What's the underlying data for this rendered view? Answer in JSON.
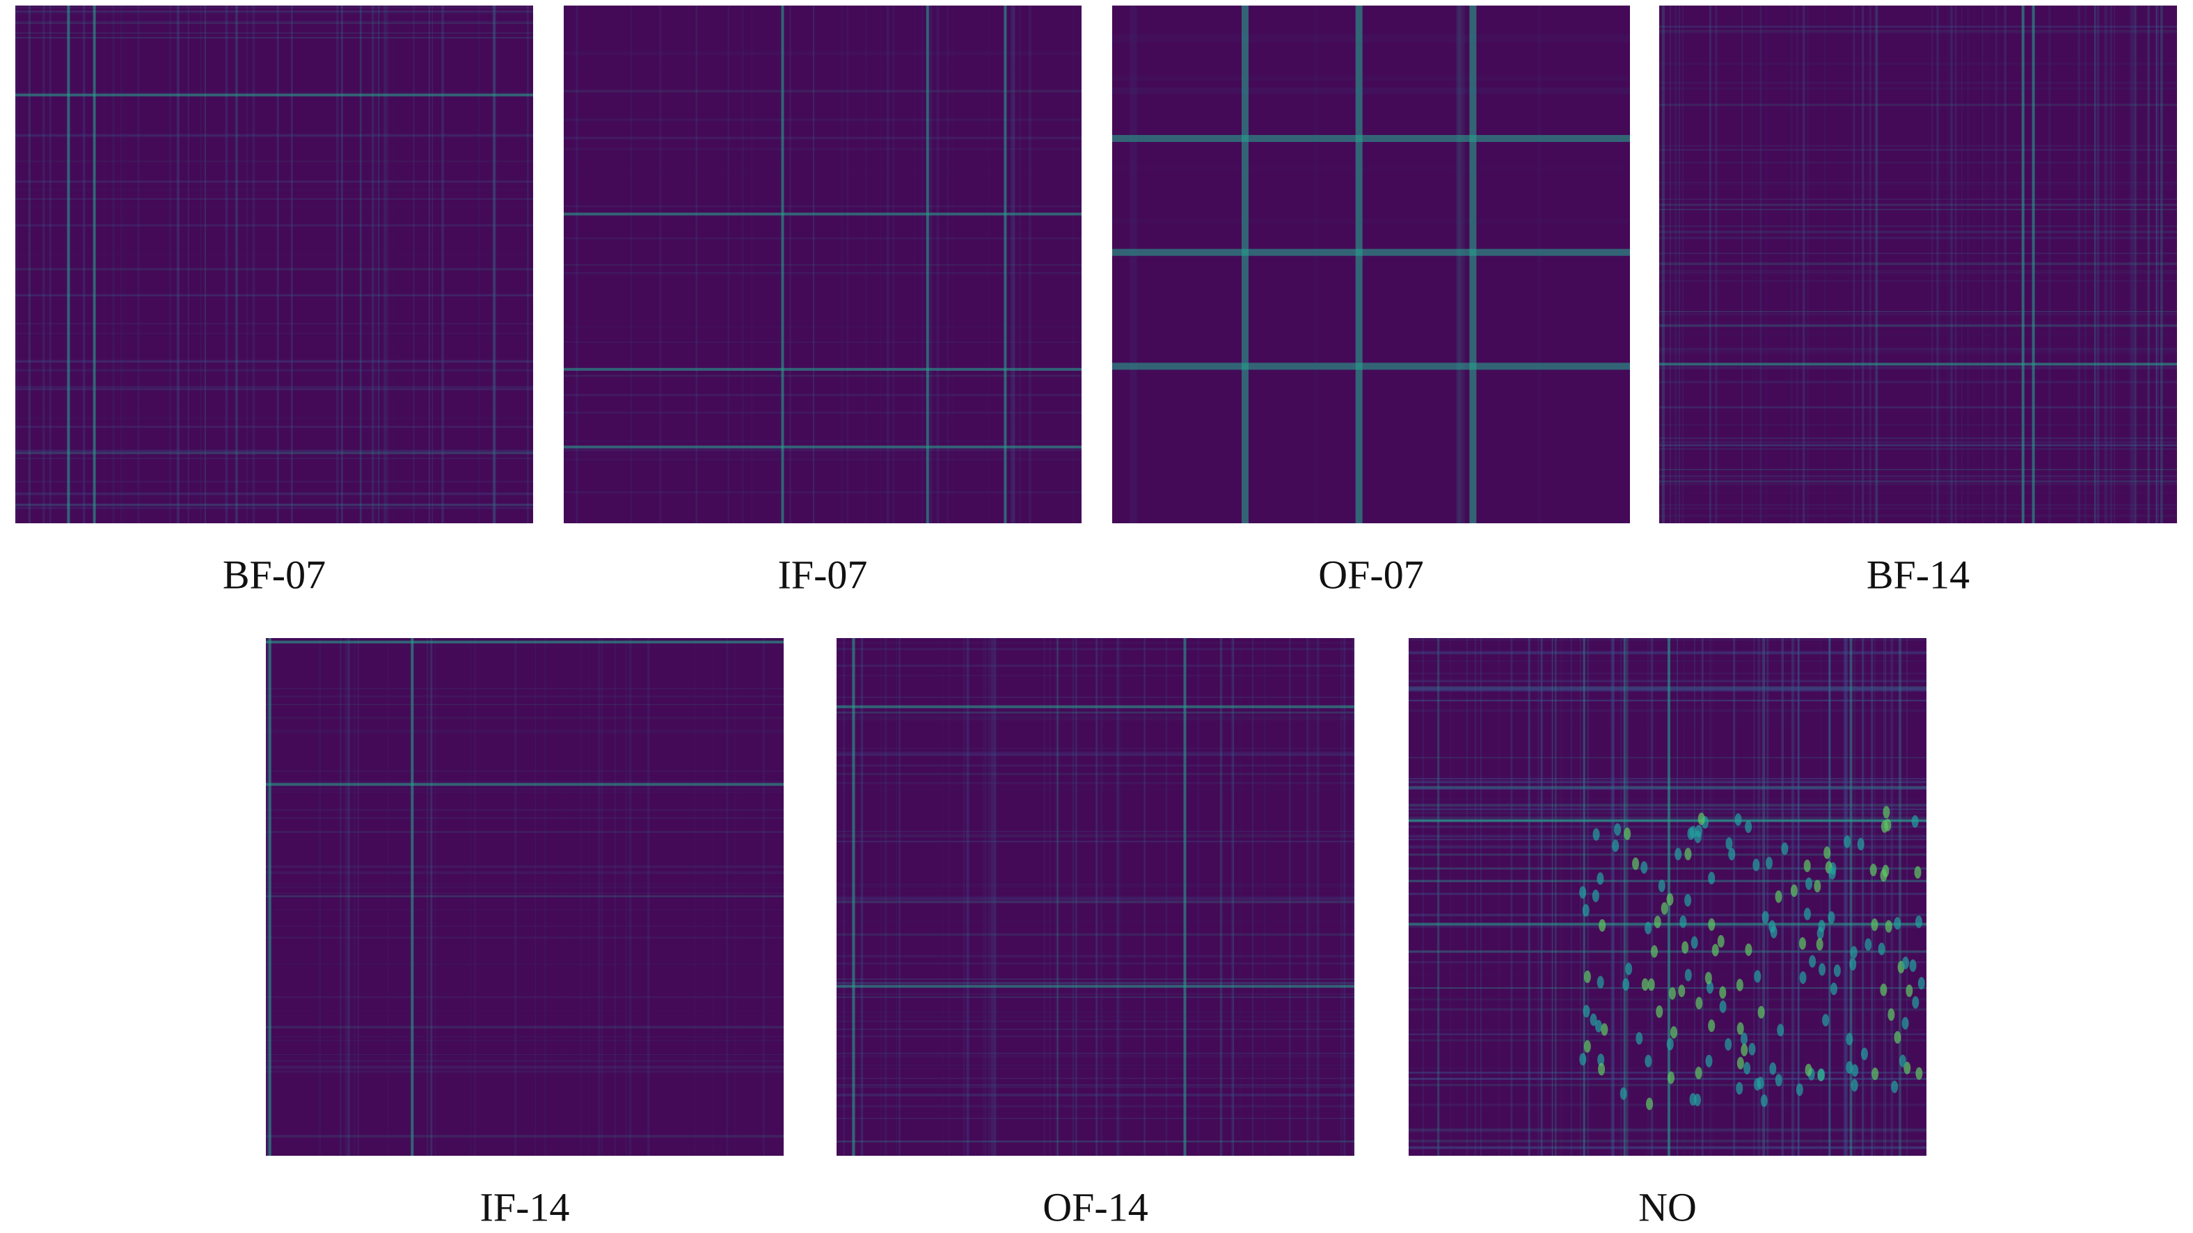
{
  "panels": [
    {
      "label": "BF-07"
    },
    {
      "label": "IF-07"
    },
    {
      "label": "OF-07"
    },
    {
      "label": "BF-14"
    },
    {
      "label": "IF-14"
    },
    {
      "label": "OF-14"
    },
    {
      "label": "NO"
    }
  ]
}
